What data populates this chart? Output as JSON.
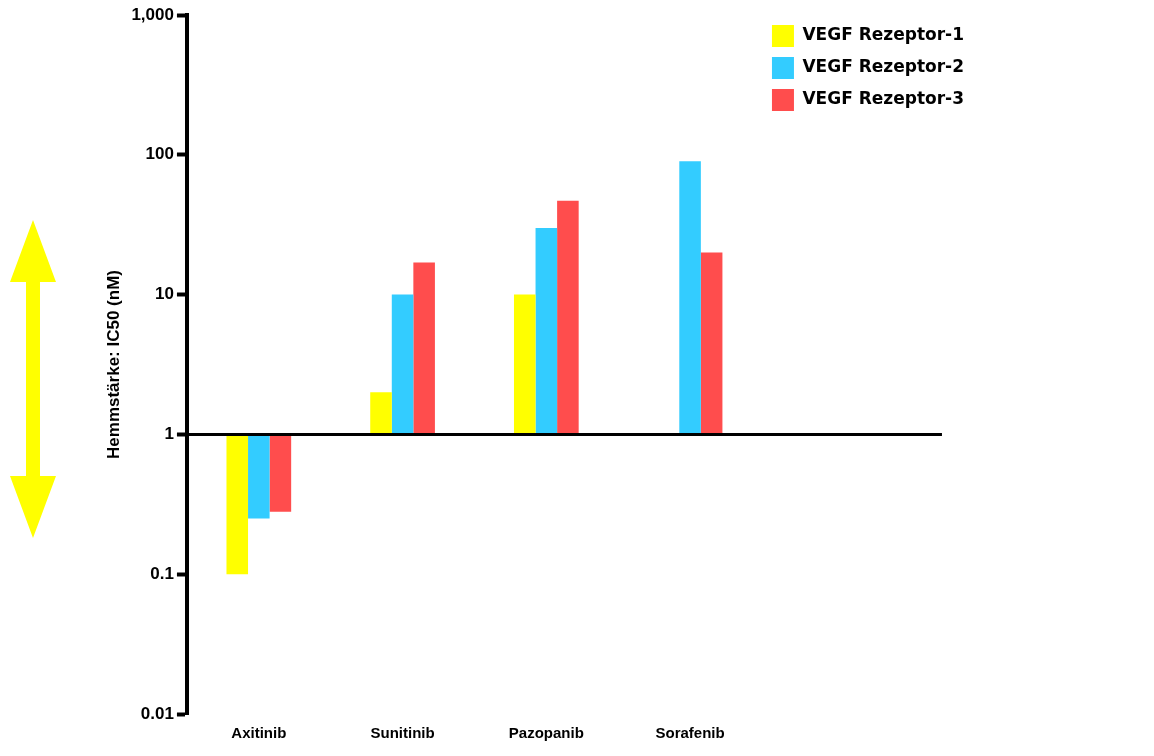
{
  "chart_data": {
    "type": "bar",
    "ylabel": "Hemmstärke: IC50 (nM)",
    "categories": [
      "Axitinib",
      "Sunitinib",
      "Pazopanib",
      "Sorafenib"
    ],
    "series": [
      {
        "name": "VEGF Rezeptor-1",
        "color": "#ffff00",
        "base": [
          1,
          1,
          1,
          null
        ],
        "values": [
          -0.9,
          1,
          9,
          null
        ]
      },
      {
        "name": "VEGF Rezeptor-2",
        "color": "#33ccff",
        "base": [
          1,
          1,
          1,
          1
        ],
        "values": [
          -0.75,
          9,
          29,
          89
        ]
      },
      {
        "name": "VEGF Rezeptor-3",
        "color": "#ff4d4d",
        "base": [
          1,
          1,
          1,
          1
        ],
        "values": [
          -0.72,
          16,
          46,
          19
        ]
      }
    ],
    "log": true,
    "ylim": [
      0.01,
      1000
    ],
    "yticks": [
      0.01,
      0.1,
      1,
      10,
      100,
      {
        "value": 1000,
        "label": "1,000"
      }
    ],
    "ref_lines": [
      {
        "axis": "y",
        "value": 1,
        "color": "#000000"
      }
    ],
    "grid": false,
    "legend": "top right"
  }
}
